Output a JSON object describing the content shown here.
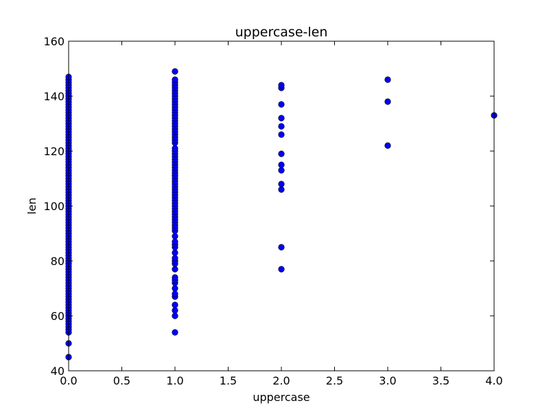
{
  "chart_data": {
    "type": "scatter",
    "title": "uppercase-len",
    "xlabel": "uppercase",
    "ylabel": "len",
    "xlim": [
      0,
      4
    ],
    "ylim": [
      40,
      160
    ],
    "xticks": [
      "0.0",
      "0.5",
      "1.0",
      "1.5",
      "2.0",
      "2.5",
      "3.0",
      "3.5",
      "4.0"
    ],
    "yticks": [
      "40",
      "60",
      "80",
      "100",
      "120",
      "140",
      "160"
    ],
    "grid": false,
    "legend": "none",
    "marker_color": "#0000ff",
    "marker_edge_color": "#000000",
    "series": [
      {
        "points": [
          [
            0,
            45
          ],
          [
            0,
            50
          ],
          [
            0,
            54
          ],
          [
            0,
            55
          ],
          [
            0,
            56
          ],
          [
            0,
            57
          ],
          [
            0,
            58
          ],
          [
            0,
            59
          ],
          [
            0,
            60
          ],
          [
            0,
            61
          ],
          [
            0,
            62
          ],
          [
            0,
            63
          ],
          [
            0,
            64
          ],
          [
            0,
            65
          ],
          [
            0,
            66
          ],
          [
            0,
            67
          ],
          [
            0,
            68
          ],
          [
            0,
            69
          ],
          [
            0,
            70
          ],
          [
            0,
            71
          ],
          [
            0,
            72
          ],
          [
            0,
            73
          ],
          [
            0,
            74
          ],
          [
            0,
            75
          ],
          [
            0,
            76
          ],
          [
            0,
            77
          ],
          [
            0,
            78
          ],
          [
            0,
            79
          ],
          [
            0,
            80
          ],
          [
            0,
            81
          ],
          [
            0,
            82
          ],
          [
            0,
            83
          ],
          [
            0,
            84
          ],
          [
            0,
            85
          ],
          [
            0,
            86
          ],
          [
            0,
            87
          ],
          [
            0,
            88
          ],
          [
            0,
            89
          ],
          [
            0,
            90
          ],
          [
            0,
            91
          ],
          [
            0,
            92
          ],
          [
            0,
            93
          ],
          [
            0,
            94
          ],
          [
            0,
            95
          ],
          [
            0,
            96
          ],
          [
            0,
            97
          ],
          [
            0,
            98
          ],
          [
            0,
            99
          ],
          [
            0,
            100
          ],
          [
            0,
            101
          ],
          [
            0,
            102
          ],
          [
            0,
            103
          ],
          [
            0,
            104
          ],
          [
            0,
            105
          ],
          [
            0,
            106
          ],
          [
            0,
            107
          ],
          [
            0,
            108
          ],
          [
            0,
            109
          ],
          [
            0,
            110
          ],
          [
            0,
            111
          ],
          [
            0,
            112
          ],
          [
            0,
            113
          ],
          [
            0,
            114
          ],
          [
            0,
            115
          ],
          [
            0,
            116
          ],
          [
            0,
            117
          ],
          [
            0,
            118
          ],
          [
            0,
            119
          ],
          [
            0,
            120
          ],
          [
            0,
            121
          ],
          [
            0,
            122
          ],
          [
            0,
            123
          ],
          [
            0,
            124
          ],
          [
            0,
            125
          ],
          [
            0,
            126
          ],
          [
            0,
            127
          ],
          [
            0,
            128
          ],
          [
            0,
            129
          ],
          [
            0,
            130
          ],
          [
            0,
            131
          ],
          [
            0,
            132
          ],
          [
            0,
            133
          ],
          [
            0,
            134
          ],
          [
            0,
            135
          ],
          [
            0,
            136
          ],
          [
            0,
            137
          ],
          [
            0,
            138
          ],
          [
            0,
            139
          ],
          [
            0,
            140
          ],
          [
            0,
            141
          ],
          [
            0,
            142
          ],
          [
            0,
            143
          ],
          [
            0,
            144
          ],
          [
            0,
            145
          ],
          [
            0,
            146
          ],
          [
            0,
            147
          ],
          [
            1,
            54
          ],
          [
            1,
            60
          ],
          [
            1,
            62
          ],
          [
            1,
            64
          ],
          [
            1,
            67
          ],
          [
            1,
            68
          ],
          [
            1,
            70
          ],
          [
            1,
            72
          ],
          [
            1,
            73
          ],
          [
            1,
            74
          ],
          [
            1,
            77
          ],
          [
            1,
            79
          ],
          [
            1,
            80
          ],
          [
            1,
            81
          ],
          [
            1,
            83
          ],
          [
            1,
            85
          ],
          [
            1,
            86
          ],
          [
            1,
            87
          ],
          [
            1,
            89
          ],
          [
            1,
            91
          ],
          [
            1,
            92
          ],
          [
            1,
            93
          ],
          [
            1,
            94
          ],
          [
            1,
            95
          ],
          [
            1,
            96
          ],
          [
            1,
            97
          ],
          [
            1,
            98
          ],
          [
            1,
            99
          ],
          [
            1,
            100
          ],
          [
            1,
            101
          ],
          [
            1,
            102
          ],
          [
            1,
            103
          ],
          [
            1,
            104
          ],
          [
            1,
            105
          ],
          [
            1,
            106
          ],
          [
            1,
            107
          ],
          [
            1,
            108
          ],
          [
            1,
            109
          ],
          [
            1,
            110
          ],
          [
            1,
            111
          ],
          [
            1,
            112
          ],
          [
            1,
            113
          ],
          [
            1,
            114
          ],
          [
            1,
            115
          ],
          [
            1,
            116
          ],
          [
            1,
            117
          ],
          [
            1,
            118
          ],
          [
            1,
            119
          ],
          [
            1,
            120
          ],
          [
            1,
            121
          ],
          [
            1,
            123
          ],
          [
            1,
            124
          ],
          [
            1,
            125
          ],
          [
            1,
            126
          ],
          [
            1,
            127
          ],
          [
            1,
            128
          ],
          [
            1,
            129
          ],
          [
            1,
            130
          ],
          [
            1,
            131
          ],
          [
            1,
            132
          ],
          [
            1,
            133
          ],
          [
            1,
            134
          ],
          [
            1,
            135
          ],
          [
            1,
            136
          ],
          [
            1,
            137
          ],
          [
            1,
            138
          ],
          [
            1,
            139
          ],
          [
            1,
            140
          ],
          [
            1,
            141
          ],
          [
            1,
            142
          ],
          [
            1,
            143
          ],
          [
            1,
            144
          ],
          [
            1,
            145
          ],
          [
            1,
            146
          ],
          [
            1,
            149
          ],
          [
            2,
            77
          ],
          [
            2,
            85
          ],
          [
            2,
            106
          ],
          [
            2,
            108
          ],
          [
            2,
            113
          ],
          [
            2,
            115
          ],
          [
            2,
            119
          ],
          [
            2,
            126
          ],
          [
            2,
            129
          ],
          [
            2,
            132
          ],
          [
            2,
            137
          ],
          [
            2,
            143
          ],
          [
            2,
            144
          ],
          [
            3,
            122
          ],
          [
            3,
            138
          ],
          [
            3,
            146
          ],
          [
            4,
            133
          ]
        ]
      }
    ]
  }
}
